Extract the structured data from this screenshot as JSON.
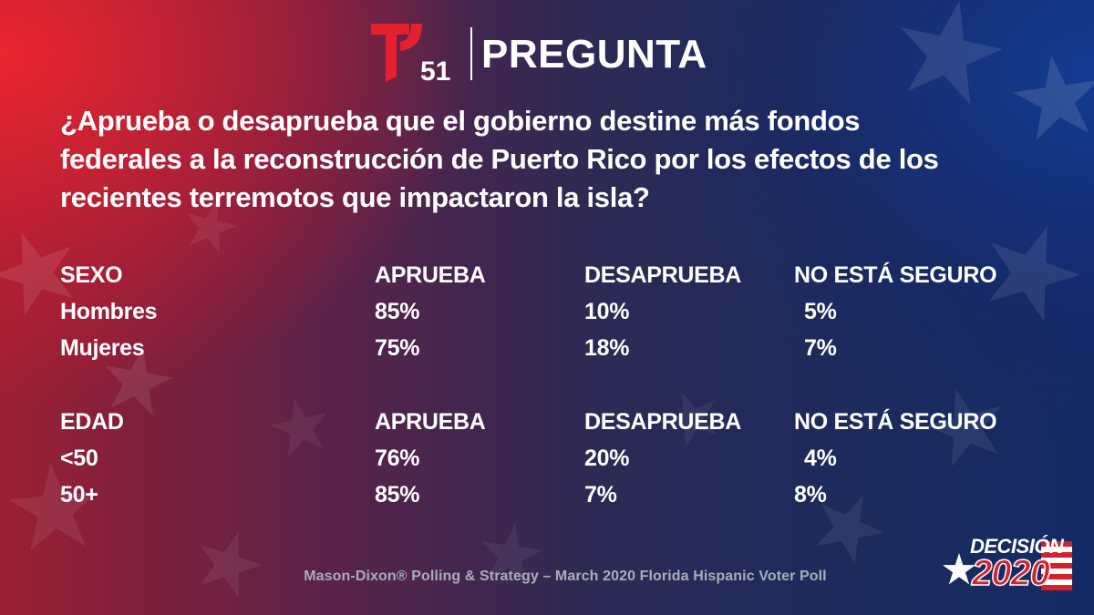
{
  "header": {
    "logo_number": "51",
    "title": "PREGUNTA"
  },
  "question": "¿Aprueba o desaprueba que el gobierno destine más fondos federales a la reconstrucción de Puerto Rico por los efectos de los recientes terremotos que impactaron la isla?",
  "tables": [
    {
      "headers": [
        "SEXO",
        "APRUEBA",
        "DESAPRUEBA",
        "NO ESTÁ SEGURO"
      ],
      "rows": [
        [
          "Hombres",
          "85%",
          "10%",
          "5%"
        ],
        [
          "Mujeres",
          "75%",
          "18%",
          "7%"
        ]
      ]
    },
    {
      "headers": [
        "EDAD",
        "APRUEBA",
        "DESAPRUEBA",
        "NO ESTÁ SEGURO"
      ],
      "rows": [
        [
          "<50",
          "76%",
          "20%",
          "4%"
        ],
        [
          "50+",
          "85%",
          "7%",
          "8%"
        ]
      ]
    }
  ],
  "footer": "Mason-Dixon® Polling & Strategy – March 2020 Florida Hispanic Voter Poll",
  "badge": {
    "word": "DECISIÓN",
    "year": "2020"
  },
  "colors": {
    "telemundo_red": "#e5202e",
    "badge_red": "#d6202c",
    "footer_gray": "#a9adb8"
  },
  "icons": {
    "logo": "telemundo-t-icon",
    "badge_star": "star-icon",
    "badge_stripes": "flag-stripes-icon",
    "background": "star-pattern"
  }
}
